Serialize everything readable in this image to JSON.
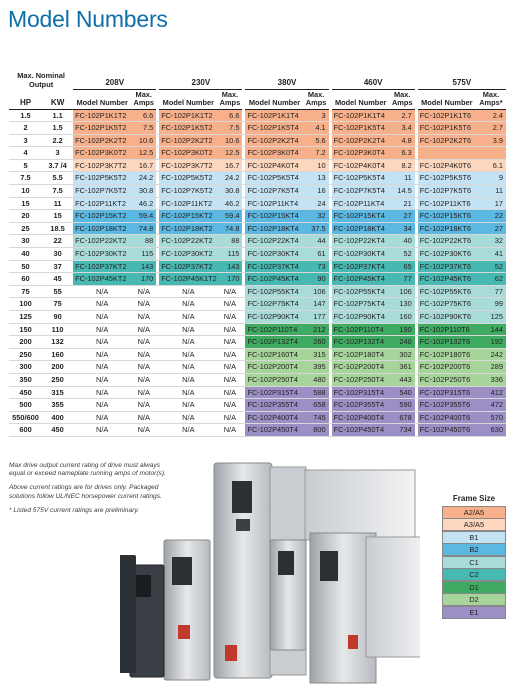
{
  "header": {
    "title": "Model Numbers"
  },
  "table": {
    "group_header": "Max. Nominal Output",
    "voltages": [
      "208V",
      "230V",
      "380V",
      "460V",
      "575V"
    ],
    "columns": [
      "HP",
      "KW",
      "Model Number",
      "Max. Amps",
      "Model Number",
      "Max. Amps",
      "Model Number",
      "Max. Amps",
      "Model Number",
      "Max. Amps",
      "Model Number",
      "Max. Amps*"
    ],
    "rows": [
      [
        "1.5",
        "1.1",
        "FC-102P1K1T2",
        "6.6",
        "FC-102P1K1T2",
        "6.6",
        "FC-102P1K1T4",
        "3",
        "FC-102P1K1T4",
        "2.7",
        "FC-102P1K1T6",
        "2.4"
      ],
      [
        "2",
        "1.5",
        "FC-102P1K5T2",
        "7.5",
        "FC-102P1K5T2",
        "7.5",
        "FC-102P1K5T4",
        "4.1",
        "FC-102P1K5T4",
        "3.4",
        "FC-102P1K5T6",
        "2.7"
      ],
      [
        "3",
        "2.2",
        "FC-102P2K2T2",
        "10.6",
        "FC-102P2K2T2",
        "10.6",
        "FC-102P2K2T4",
        "5.6",
        "FC-102P2K2T4",
        "4.8",
        "FC-102P2K2T6",
        "3.9"
      ],
      [
        "4",
        "3",
        "FC-102P3K0T2",
        "12.5",
        "FC-102P3K0T2",
        "12.5",
        "FC-102P3K0T4",
        "7.2",
        "FC-102P3K0T4",
        "6.3",
        null,
        null
      ],
      [
        "5",
        "3.7 /4",
        "FC-102P3K7T2",
        "16.7",
        "FC-102P3K7T2",
        "16.7",
        "FC-102P4K0T4",
        "10",
        "FC-102P4K0T4",
        "8.2",
        "FC-102P4K0T6",
        "6.1"
      ],
      [
        "7.5",
        "5.5",
        "FC-102P5K5T2",
        "24.2",
        "FC-102P5K5T2",
        "24.2",
        "FC-102P5K5T4",
        "13",
        "FC-102P5K5T4",
        "11",
        "FC-102P5K5T6",
        "9"
      ],
      [
        "10",
        "7.5",
        "FC-102P7K5T2",
        "30.8",
        "FC-102P7K5T2",
        "30.8",
        "FC-102P7K5T4",
        "16",
        "FC-102P7K5T4",
        "14.5",
        "FC-102P7K5T6",
        "11"
      ],
      [
        "15",
        "11",
        "FC-102P11KT2",
        "46.2",
        "FC-102P11KT2",
        "46.2",
        "FC-102P11KT4",
        "24",
        "FC-102P11KT4",
        "21",
        "FC-102P11KT6",
        "17"
      ],
      [
        "20",
        "15",
        "FC-102P15KT2",
        "59.4",
        "FC-102P15KT2",
        "59.4",
        "FC-102P15KT4",
        "32",
        "FC-102P15KT4",
        "27",
        "FC-102P15KT6",
        "22"
      ],
      [
        "25",
        "18.5",
        "FC-102P18KT2",
        "74.8",
        "FC-102P18KT2",
        "74.8",
        "FC-102P18KT4",
        "37.5",
        "FC-102P18KT4",
        "34",
        "FC-102P18KT6",
        "27"
      ],
      [
        "30",
        "22",
        "FC-102P22KT2",
        "88",
        "FC-102P22KT2",
        "88",
        "FC-102P22KT4",
        "44",
        "FC-102P22KT4",
        "40",
        "FC-102P22KT6",
        "32"
      ],
      [
        "40",
        "30",
        "FC-102P30KT2",
        "115",
        "FC-102P30KT2",
        "115",
        "FC-102P30KT4",
        "61",
        "FC-102P30KT4",
        "52",
        "FC-102P30KT6",
        "41"
      ],
      [
        "50",
        "37",
        "FC-102P37KT2",
        "143",
        "FC-102P37KT2",
        "143",
        "FC-102P37KT4",
        "73",
        "FC-102P37KT4",
        "65",
        "FC-102P37KT6",
        "52"
      ],
      [
        "60",
        "45",
        "FC-102P45KT2",
        "170",
        "FC-102P45K1T2",
        "170",
        "FC-102P45KT4",
        "90",
        "FC-102P45KT4",
        "77",
        "FC-102P45KT6",
        "62"
      ],
      [
        "75",
        "55",
        "N/A",
        "N/A",
        "N/A",
        "N/A",
        "FC-102P55KT4",
        "106",
        "FC-102P55KT4",
        "106",
        "FC-102P55KT6",
        "77"
      ],
      [
        "100",
        "75",
        "N/A",
        "N/A",
        "N/A",
        "N/A",
        "FC-102P75KT4",
        "147",
        "FC-102P75KT4",
        "130",
        "FC-102P75KT6",
        "99"
      ],
      [
        "125",
        "90",
        "N/A",
        "N/A",
        "N/A",
        "N/A",
        "FC-102P90KT4",
        "177",
        "FC-102P90KT4",
        "160",
        "FC-102P90KT6",
        "125"
      ],
      [
        "150",
        "110",
        "N/A",
        "N/A",
        "N/A",
        "N/A",
        "FC-102P110T4",
        "212",
        "FC-102P110T4",
        "190",
        "FC-102P110T6",
        "144"
      ],
      [
        "200",
        "132",
        "N/A",
        "N/A",
        "N/A",
        "N/A",
        "FC-102P132T4",
        "260",
        "FC-102P132T4",
        "240",
        "FC-102P132T6",
        "192"
      ],
      [
        "250",
        "160",
        "N/A",
        "N/A",
        "N/A",
        "N/A",
        "FC-102P160T4",
        "315",
        "FC-102P180T4",
        "302",
        "FC-102P180T6",
        "242"
      ],
      [
        "300",
        "200",
        "N/A",
        "N/A",
        "N/A",
        "N/A",
        "FC-102P200T4",
        "395",
        "FC-102P200T4",
        "361",
        "FC-102P200T6",
        "289"
      ],
      [
        "350",
        "250",
        "N/A",
        "N/A",
        "N/A",
        "N/A",
        "FC-102P250T4",
        "480",
        "FC-102P250T4",
        "443",
        "FC-102P250T6",
        "336"
      ],
      [
        "450",
        "315",
        "N/A",
        "N/A",
        "N/A",
        "N/A",
        "FC-102P315T4",
        "588",
        "FC-102P315T4",
        "540",
        "FC-102P315T6",
        "412"
      ],
      [
        "500",
        "355",
        "N/A",
        "N/A",
        "N/A",
        "N/A",
        "FC-102P355T4",
        "658",
        "FC-102P355T4",
        "590",
        "FC-102P355T6",
        "472"
      ],
      [
        "550/600",
        "400",
        "N/A",
        "N/A",
        "N/A",
        "N/A",
        "FC-102P400T4",
        "745",
        "FC-102P400T4",
        "678",
        "FC-102P400T6",
        "570"
      ],
      [
        "600",
        "450",
        "N/A",
        "N/A",
        "N/A",
        "N/A",
        "FC-102P450T4",
        "800",
        "FC-102P450T4",
        "734",
        "FC-102P450T6",
        "630"
      ]
    ]
  },
  "notes": [
    "Max drive output current rating of drive must always equal or exceed nameplate running amps of motor(s).",
    "Above current ratings are for drives only. Packaged solutions follow UL/NEC horsepower current ratings.",
    "* Listed 575V current ratings are preliminary."
  ],
  "legend": {
    "title": "Frame Size",
    "items": [
      {
        "label": "A2/A5",
        "color": "#f7b089"
      },
      {
        "label": "A3/A5",
        "color": "#fcd7bd"
      },
      {
        "label": "B1",
        "color": "#c3e2f3"
      },
      {
        "label": "B2",
        "color": "#5ab8e2"
      },
      {
        "label": "C1",
        "color": "#a9dcd8"
      },
      {
        "label": "C2",
        "color": "#48b8b2"
      },
      {
        "label": "D1",
        "color": "#3fab62"
      },
      {
        "label": "D2",
        "color": "#a7d49a"
      },
      {
        "label": "E1",
        "color": "#9c8fc6"
      }
    ]
  }
}
